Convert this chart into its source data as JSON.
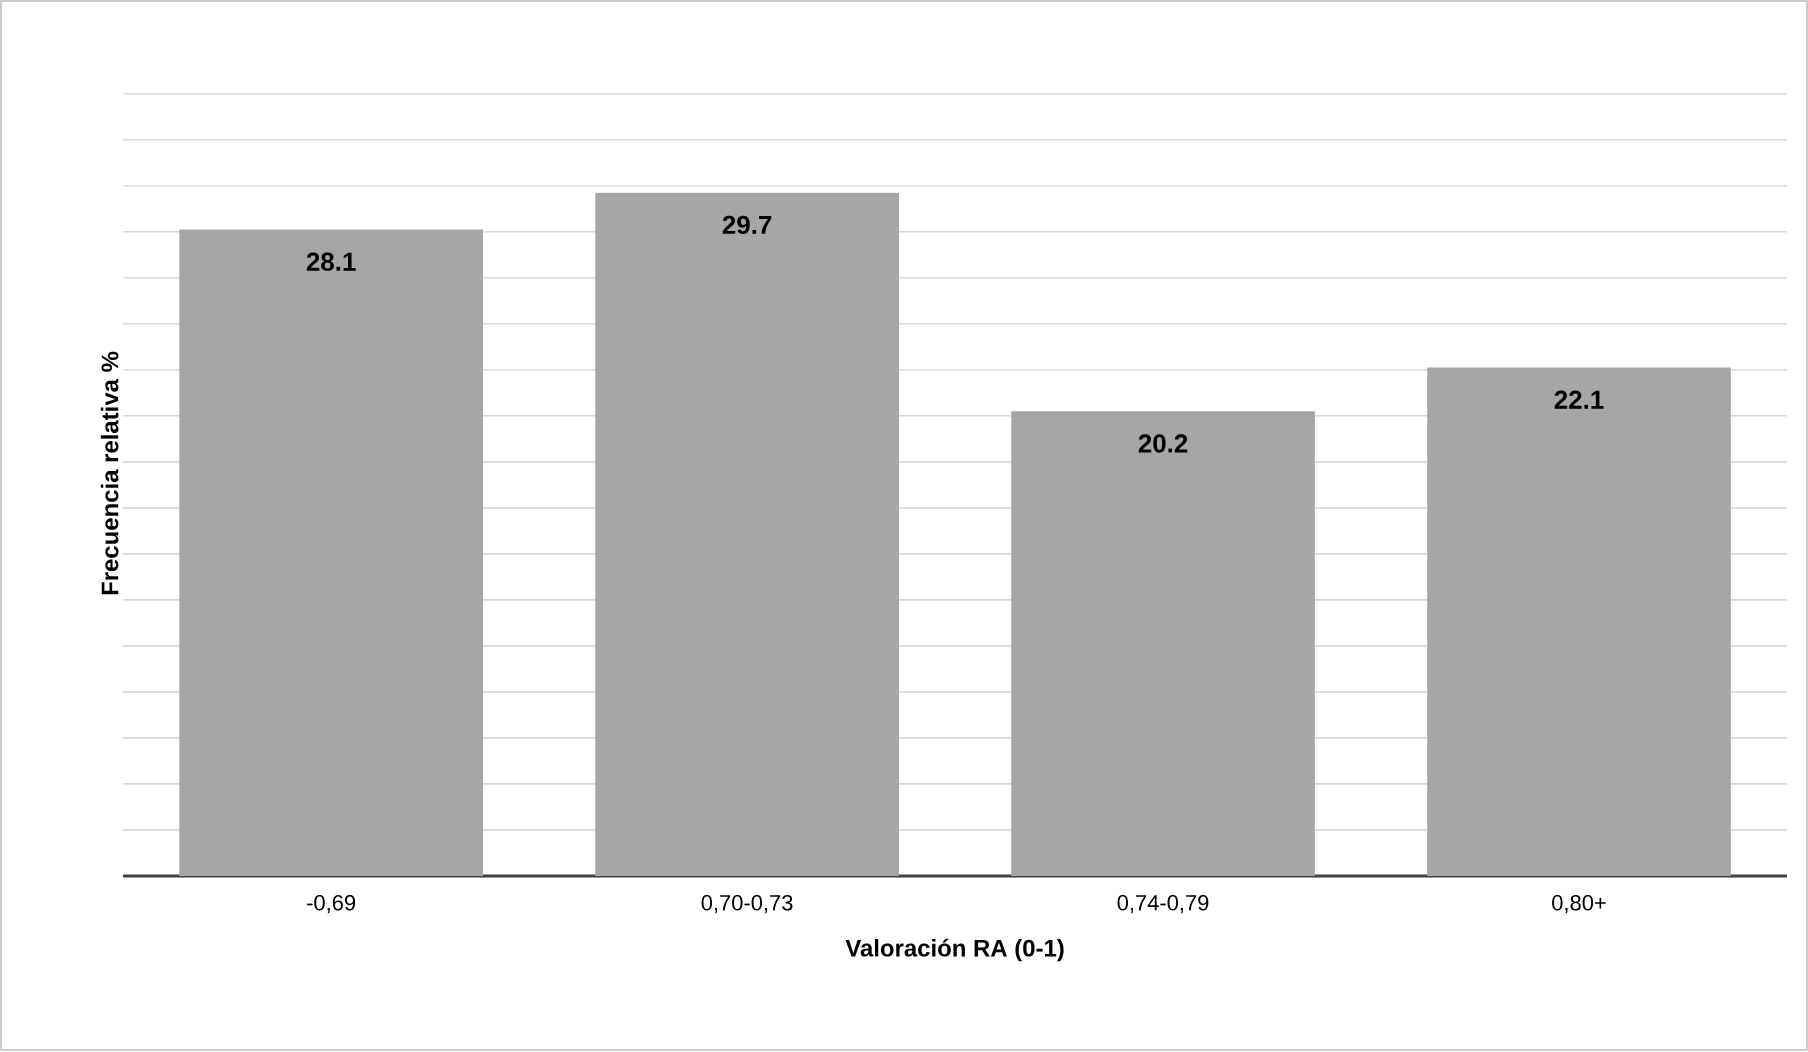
{
  "chart_data": {
    "type": "bar",
    "xlabel": "Valoración RA (0-1)",
    "ylabel": "Frecuencia relativa %",
    "categories": [
      "-0,69",
      "0,70-0,73",
      "0,74-0,79",
      "0,80+"
    ],
    "values": [
      28.1,
      29.7,
      20.2,
      22.1
    ],
    "color": "#a6a6a6",
    "tick_labels": "x",
    "grid": "y",
    "data_labels": true
  }
}
